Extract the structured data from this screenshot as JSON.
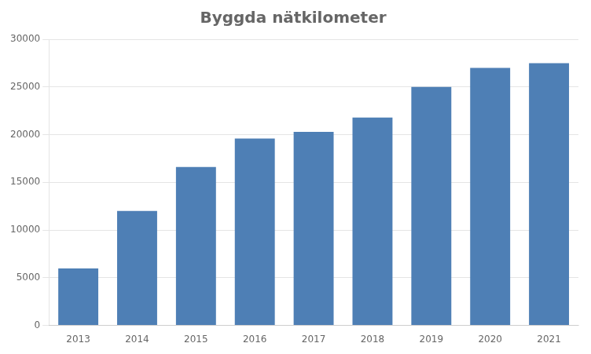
{
  "chart_data": {
    "type": "bar",
    "title": "Byggda nätkilometer",
    "categories": [
      "2013",
      "2014",
      "2015",
      "2016",
      "2017",
      "2018",
      "2019",
      "2020",
      "2021"
    ],
    "values": [
      5977,
      12000,
      16600,
      19600,
      20300,
      21800,
      25000,
      27000,
      27500
    ],
    "color": "#4E7FB5",
    "ylim": [
      0,
      30000
    ],
    "yticks": [
      0,
      5000,
      10000,
      15000,
      20000,
      25000,
      30000
    ],
    "grid": true
  }
}
